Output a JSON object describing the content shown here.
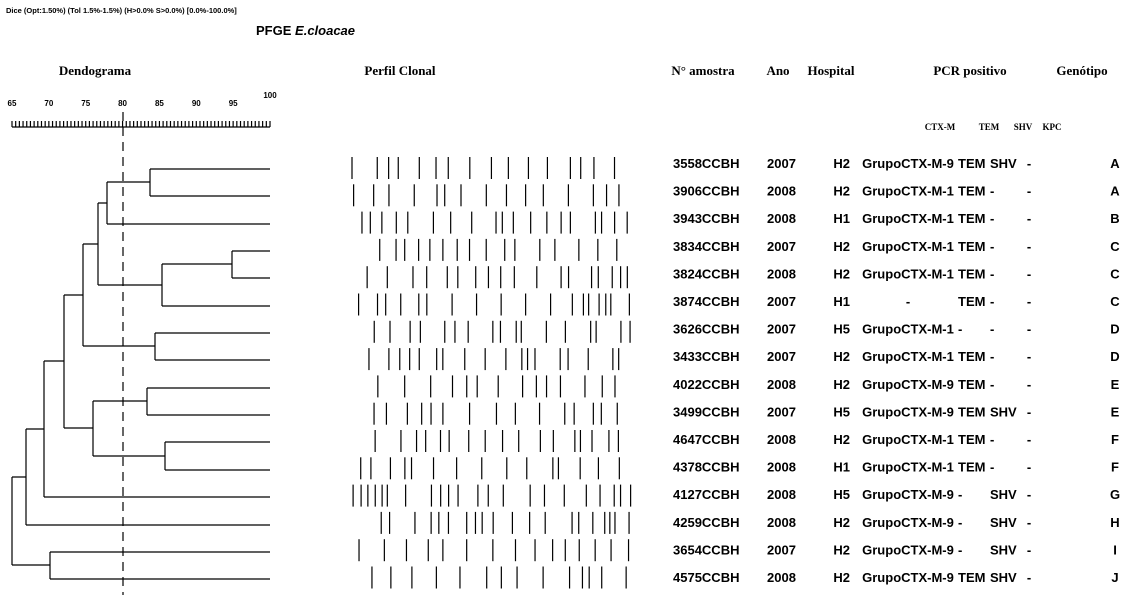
{
  "header": {
    "note": "Dice (Opt:1.50%) (Tol 1.5%-1.5%) (H>0.0% S>0.0%) [0.0%-100.0%]",
    "title": "PFGE",
    "species": "E.cloacae"
  },
  "columns": {
    "dendrogram": "Dendograma",
    "profile": "Perfil Clonal",
    "sample": "N° amostra",
    "year": "Ano",
    "hospital": "Hospital",
    "pcr": "PCR positivo",
    "genotype": "Genótipo"
  },
  "pcr_columns": [
    "CTX-M",
    "TEM",
    "SHV",
    "KPC"
  ],
  "axis": {
    "range": [
      65,
      100
    ],
    "ticks": [
      65,
      70,
      75,
      80,
      85,
      90,
      95,
      100
    ]
  },
  "rows": [
    [
      "3558CCBH",
      "2007",
      "H2",
      "GrupoCTX-M-9",
      "TEM",
      "SHV",
      "-",
      "A"
    ],
    [
      "3906CCBH",
      "2008",
      "H2",
      "GrupoCTX-M-1",
      "TEM",
      "-",
      "-",
      "A"
    ],
    [
      "3943CCBH",
      "2008",
      "H1",
      "GrupoCTX-M-1",
      "TEM",
      "-",
      "-",
      "B"
    ],
    [
      "3834CCBH",
      "2007",
      "H2",
      "GrupoCTX-M-1",
      "TEM",
      "-",
      "-",
      "C"
    ],
    [
      "3824CCBH",
      "2008",
      "H2",
      "GrupoCTX-M-1",
      "TEM",
      "-",
      "-",
      "C"
    ],
    [
      "3874CCBH",
      "2007",
      "H1",
      "-",
      "TEM",
      "-",
      "-",
      "C"
    ],
    [
      "3626CCBH",
      "2007",
      "H5",
      "GrupoCTX-M-1",
      "-",
      "-",
      "-",
      "D"
    ],
    [
      "3433CCBH",
      "2007",
      "H2",
      "GrupoCTX-M-1",
      "TEM",
      "-",
      "-",
      "D"
    ],
    [
      "4022CCBH",
      "2008",
      "H2",
      "GrupoCTX-M-9",
      "TEM",
      "-",
      "-",
      "E"
    ],
    [
      "3499CCBH",
      "2007",
      "H5",
      "GrupoCTX-M-9",
      "TEM",
      "SHV",
      "-",
      "E"
    ],
    [
      "4647CCBH",
      "2008",
      "H2",
      "GrupoCTX-M-1",
      "TEM",
      "-",
      "-",
      "F"
    ],
    [
      "4378CCBH",
      "2008",
      "H1",
      "GrupoCTX-M-1",
      "TEM",
      "-",
      "-",
      "F"
    ],
    [
      "4127CCBH",
      "2008",
      "H5",
      "GrupoCTX-M-9",
      "-",
      "SHV",
      "-",
      "G"
    ],
    [
      "4259CCBH",
      "2008",
      "H2",
      "GrupoCTX-M-9",
      "-",
      "SHV",
      "-",
      "H"
    ],
    [
      "3654CCBH",
      "2007",
      "H2",
      "GrupoCTX-M-9",
      "-",
      "SHV",
      "-",
      "I"
    ],
    [
      "4575CCBH",
      "2008",
      "H2",
      "GrupoCTX-M-9",
      "TEM",
      "SHV",
      "-",
      "J"
    ]
  ]
}
